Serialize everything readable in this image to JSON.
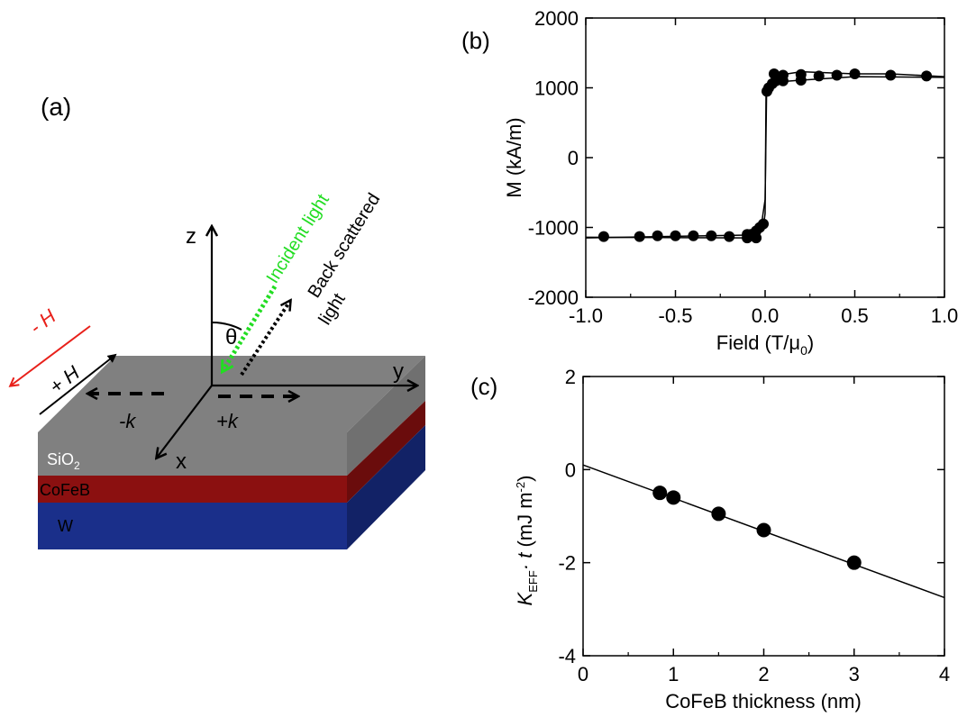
{
  "panel_a": {
    "label": "(a)",
    "layers": {
      "top": "SiO",
      "top_sub": "2",
      "middle": "CoFeB",
      "bottom": "W"
    },
    "axes": {
      "z": "z",
      "y": "y",
      "x": "x",
      "theta": "θ"
    },
    "incident_light": "Incident light",
    "back_scattered": "Back scattered",
    "light": "light",
    "field_minus": "- H",
    "field_plus": "+ H",
    "k_minus": "-k",
    "k_plus": "+k",
    "colors": {
      "incident": "#22dd22",
      "minus_h": "#e8201a",
      "sio2": "#888888",
      "cofeb": "#8b1010",
      "w": "#1a2f8a"
    }
  },
  "chart_data": [
    {
      "panel": "(b)",
      "type": "scatter",
      "xlabel": "Field (T/μ",
      "xlabel_sub": "0",
      "xlabel_end": ")",
      "ylabel": "M (kA/m)",
      "xlim": [
        -1.0,
        1.0
      ],
      "ylim": [
        -2000,
        2000
      ],
      "xticks": [
        "-1.0",
        "-0.5",
        "0.0",
        "0.5",
        "1.0"
      ],
      "yticks": [
        "-2000",
        "-1000",
        "0",
        "1000",
        "2000"
      ],
      "series": [
        {
          "points": [
            [
              -0.9,
              -1130
            ],
            [
              -0.7,
              -1130
            ],
            [
              -0.6,
              -1120
            ],
            [
              -0.5,
              -1120
            ],
            [
              -0.4,
              -1120
            ],
            [
              -0.3,
              -1120
            ],
            [
              -0.2,
              -1130
            ],
            [
              -0.1,
              -1150
            ],
            [
              -0.08,
              -1100
            ],
            [
              -0.05,
              -1050
            ],
            [
              -0.03,
              -1000
            ],
            [
              -0.01,
              -950
            ],
            [
              0.01,
              950
            ],
            [
              0.02,
              1000
            ],
            [
              0.04,
              1060
            ],
            [
              0.06,
              1100
            ],
            [
              0.08,
              1150
            ],
            [
              0.1,
              1180
            ],
            [
              0.2,
              1190
            ],
            [
              0.3,
              1170
            ],
            [
              0.4,
              1180
            ],
            [
              0.5,
              1200
            ],
            [
              0.7,
              1180
            ],
            [
              0.9,
              1170
            ],
            [
              0.1,
              1100
            ],
            [
              0.2,
              1110
            ],
            [
              0.05,
              1200
            ],
            [
              -0.05,
              -1150
            ],
            [
              -0.1,
              -1100
            ]
          ]
        }
      ]
    },
    {
      "panel": "(c)",
      "type": "scatter",
      "xlabel": "CoFeB thickness (nm)",
      "ylabel_main": "K",
      "ylabel_sub": "EFF",
      "ylabel_mid": "· t",
      "ylabel_unit": " (mJ m",
      "ylabel_sup": "-2",
      "ylabel_end": ")",
      "xlim": [
        0,
        4
      ],
      "ylim": [
        -4,
        2
      ],
      "xticks": [
        "0",
        "1",
        "2",
        "3",
        "4"
      ],
      "yticks": [
        "-4",
        "-2",
        "0",
        "2"
      ],
      "points": [
        [
          0.85,
          -0.5
        ],
        [
          1.0,
          -0.6
        ],
        [
          1.5,
          -0.95
        ],
        [
          2.0,
          -1.3
        ],
        [
          3.0,
          -2.0
        ]
      ],
      "fit_line": [
        [
          0,
          0.1
        ],
        [
          4,
          -2.75
        ]
      ]
    }
  ]
}
